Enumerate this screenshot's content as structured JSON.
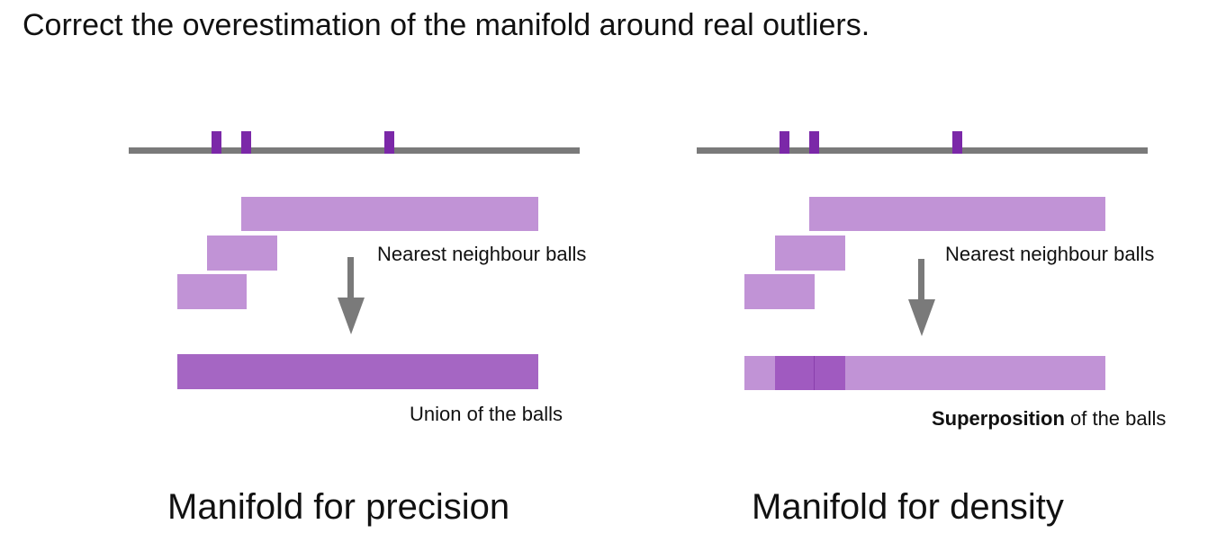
{
  "title": "Correct the overestimation of the manifold around real outliers.",
  "panels": [
    {
      "id": "precision",
      "balls_label": "Nearest neighbour balls",
      "result_label": "Union of the balls",
      "caption": "Manifold for precision",
      "point_color": "#7b28a8",
      "ball_color": "#c193d6",
      "result_color": "#a566c3"
    },
    {
      "id": "density",
      "balls_label": "Nearest neighbour balls",
      "result_label_bold": "Superposition",
      "result_label_rest": " of the balls",
      "caption": "Manifold for density",
      "point_color": "#7b28a8",
      "ball_color": "#c193d6",
      "overlap_color": "#a05ac0"
    }
  ],
  "colors": {
    "axis": "#7a7a7a",
    "arrow": "#7a7a7a",
    "text": "#111111"
  }
}
